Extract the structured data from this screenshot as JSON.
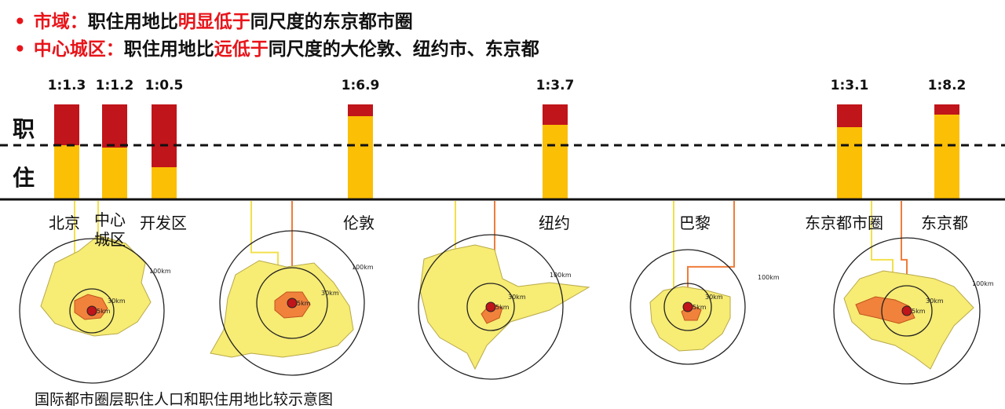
{
  "heading": {
    "line1": {
      "bullet": "•",
      "label": "市域：",
      "text_a": "职住用地比",
      "highlight": "明显低于",
      "text_b": "同尺度的东京都市圈"
    },
    "line2": {
      "bullet": "•",
      "label": "中心城区：",
      "text_a": "职住用地比",
      "highlight": "远低于",
      "text_b": "同尺度的大伦敦、纽约市、东京都"
    }
  },
  "axis_labels": {
    "jobs": "职",
    "housing": "住"
  },
  "chart_data": {
    "type": "bar",
    "stacked": true,
    "categories": [
      "北京",
      "中心城区",
      "开发区",
      "伦敦",
      "纽约",
      "东京都市圈",
      "东京都"
    ],
    "ratio_labels": [
      "1:1.3",
      "1:1.2",
      "1:0.5",
      "1:6.9",
      "1:3.7",
      "1:3.1",
      "1:8.2"
    ],
    "series": [
      {
        "name": "职",
        "values": [
          1,
          1,
          1,
          1,
          1,
          1,
          1
        ]
      },
      {
        "name": "住",
        "values": [
          1.3,
          1.2,
          0.5,
          6.9,
          3.7,
          3.1,
          8.2
        ]
      }
    ],
    "colors": {
      "jobs": "#c0151a",
      "housing": "#fbbf06"
    },
    "threshold_line": "dashed"
  },
  "cities": [
    "北京",
    "中心\n城区",
    "开发区",
    "伦敦",
    "纽约",
    "巴黎",
    "东京都市圈",
    "东京都"
  ],
  "map_labels": {
    "km100": "100km",
    "km30": "30km",
    "km5": "5km"
  },
  "colors": {
    "accent_red": "#e8141a",
    "map_yellow": "#f7ec74",
    "map_orange": "#f0823c",
    "connector_orange": "#f07c3a",
    "connector_yellow": "#f2e04a"
  },
  "caption": "国际都市圈层职住人口和职住用地比较示意图"
}
